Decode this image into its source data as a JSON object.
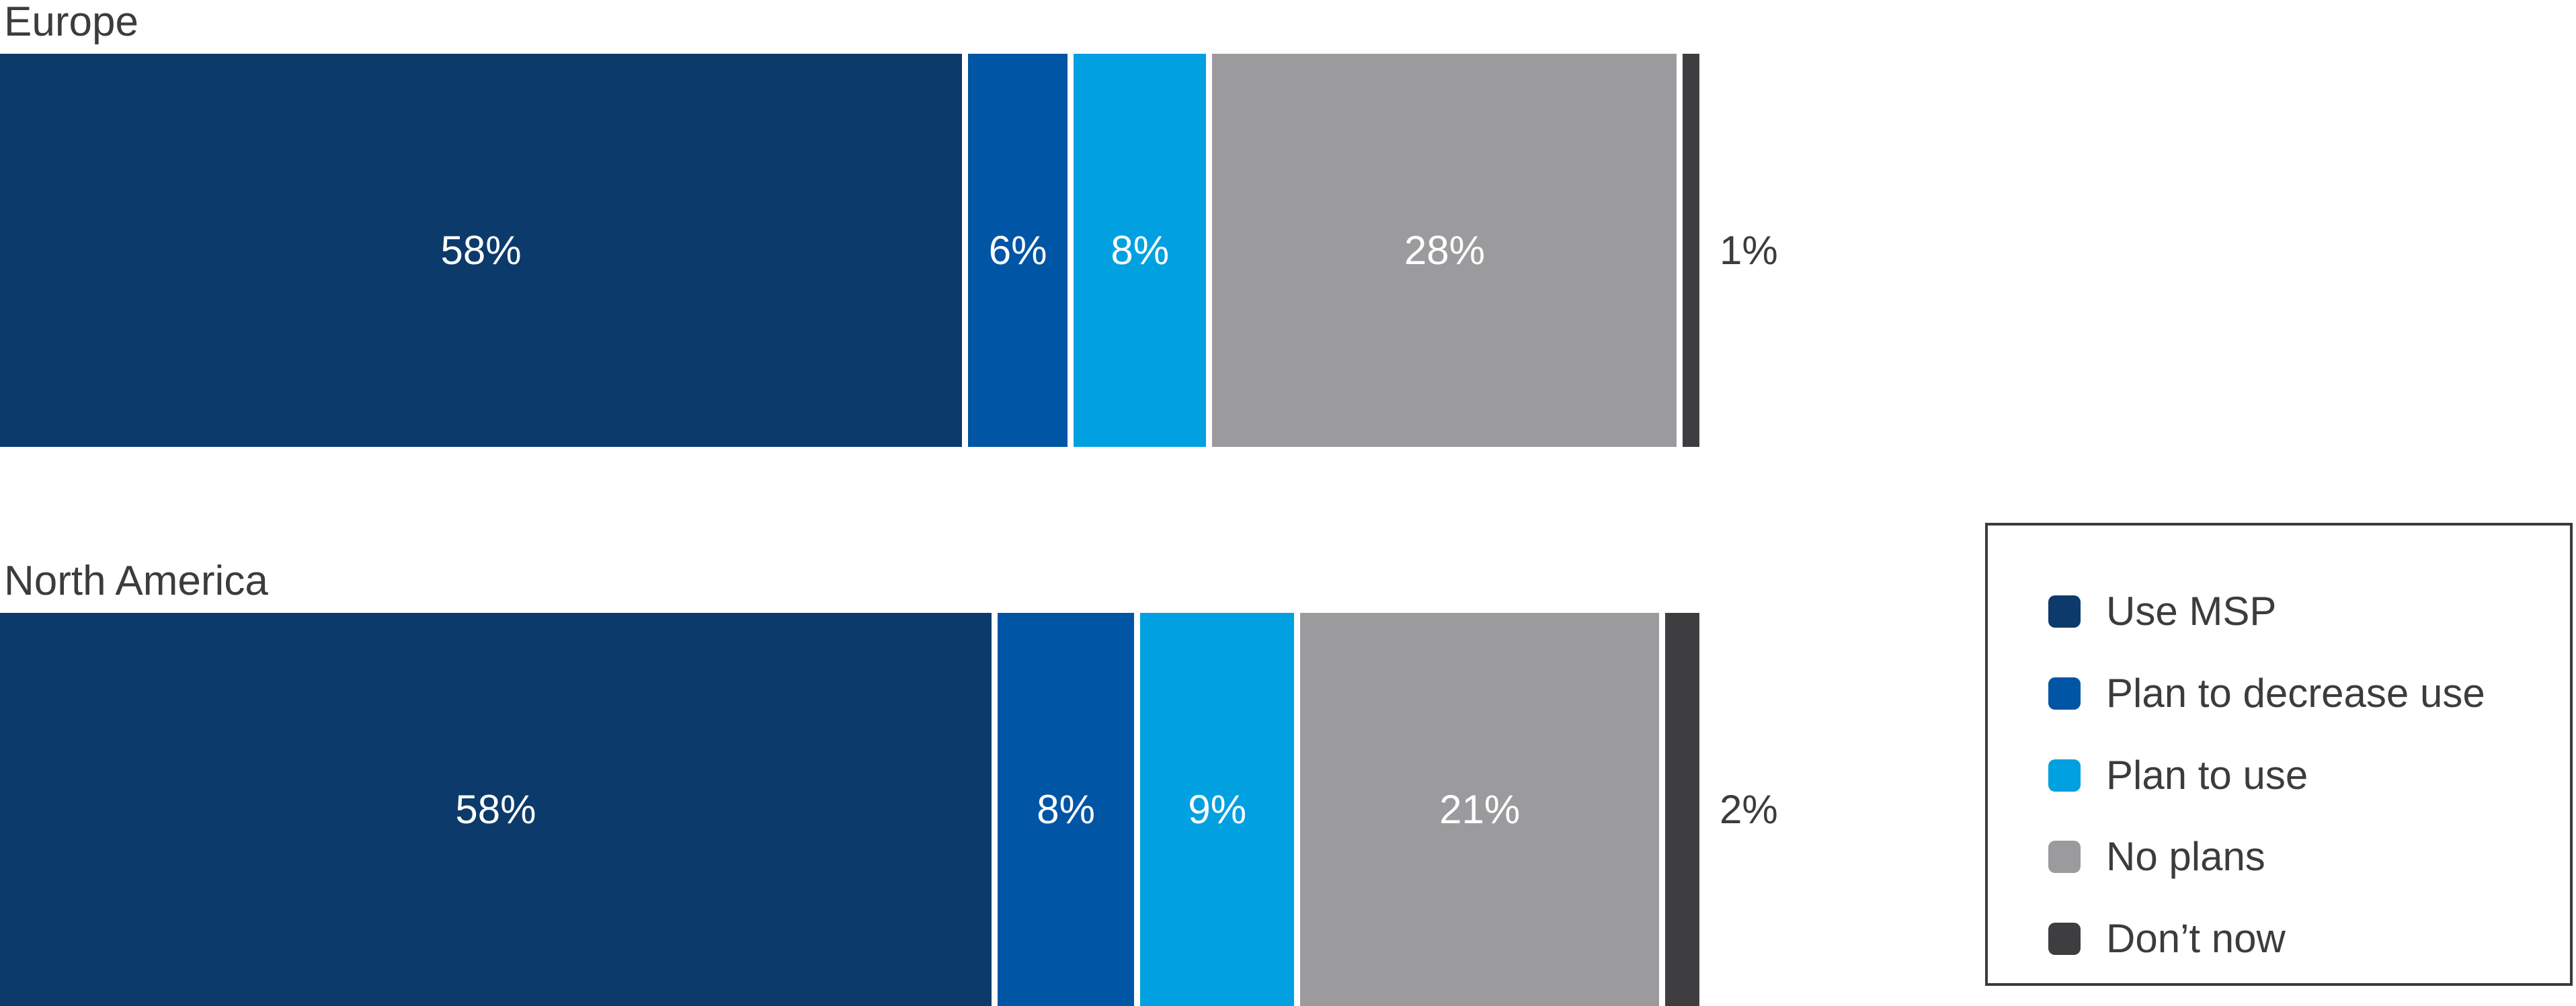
{
  "chart_data": {
    "type": "bar",
    "orientation": "horizontal-stacked",
    "title": "",
    "categories": [
      "Europe",
      "North America"
    ],
    "series": [
      {
        "name": "Use MSP",
        "color": "#0c3a6a",
        "values": [
          58,
          58
        ]
      },
      {
        "name": "Plan to decrease use",
        "color": "#0055a5",
        "values": [
          6,
          8
        ]
      },
      {
        "name": "Plan to use",
        "color": "#00a0e1",
        "values": [
          8,
          9
        ]
      },
      {
        "name": "No plans",
        "color": "#9b9b9d",
        "values": [
          28,
          21
        ]
      },
      {
        "name": "Don’t now",
        "color": "#3e3e40",
        "values": [
          1,
          2
        ]
      }
    ],
    "value_suffix": "%",
    "segment_labels": {
      "Europe": [
        "58%",
        "6%",
        "8%",
        "28%",
        "1%"
      ],
      "North America": [
        "58%",
        "8%",
        "9%",
        "21%",
        "2%"
      ]
    },
    "outside_label_threshold": 4,
    "legend_position": "right",
    "grid": false,
    "colors": {
      "background": "#ffffff",
      "text": "#3c3c3c",
      "inside_label": "#ffffff",
      "legend_border": "#3a3a3a"
    }
  }
}
